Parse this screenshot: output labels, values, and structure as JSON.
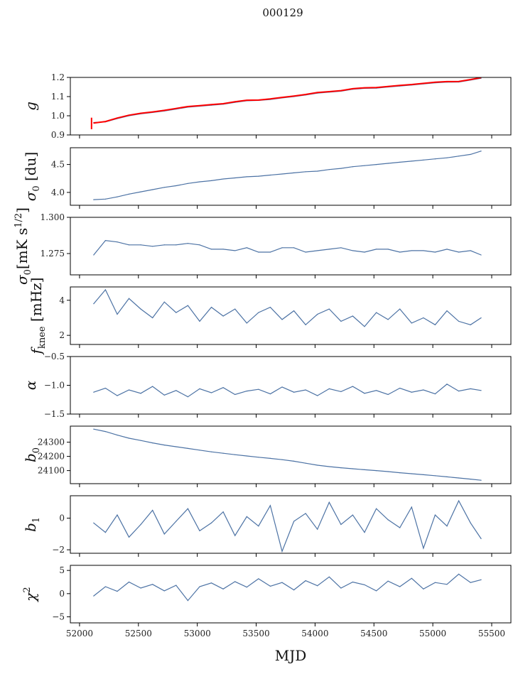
{
  "chart_data": {
    "type": "line",
    "title": "000129",
    "xlabel": "MJD",
    "xlim": [
      51922,
      55663
    ],
    "xticks": [
      52000,
      52500,
      53000,
      53500,
      54000,
      54500,
      55000,
      55500
    ],
    "x": [
      52120,
      52220,
      52320,
      52420,
      52520,
      52620,
      52720,
      52820,
      52920,
      53020,
      53120,
      53220,
      53320,
      53420,
      53520,
      53620,
      53720,
      53820,
      53920,
      54020,
      54120,
      54220,
      54320,
      54420,
      54520,
      54620,
      54720,
      54820,
      54920,
      55020,
      55120,
      55220,
      55320,
      55410
    ],
    "panels": [
      {
        "id": "g",
        "ylabel": {
          "sym": "g",
          "sub": "",
          "rest": "",
          "sup": "",
          "rest2": ""
        },
        "ylim": [
          0.9,
          1.2
        ],
        "yticks": [
          "0.9",
          "1.0",
          "1.1",
          "1.2"
        ],
        "series": [
          {
            "name": "g",
            "color": "#4c72a4",
            "values": [
              0.965,
              0.968,
              0.985,
              1.0,
              1.01,
              1.017,
              1.025,
              1.035,
              1.045,
              1.05,
              1.055,
              1.06,
              1.07,
              1.078,
              1.08,
              1.085,
              1.093,
              1.1,
              1.108,
              1.118,
              1.123,
              1.128,
              1.138,
              1.143,
              1.144,
              1.15,
              1.155,
              1.16,
              1.166,
              1.172,
              1.175,
              1.176,
              1.186,
              1.196
            ]
          },
          {
            "name": "g fit",
            "color": "#ff0000",
            "values": [
              0.962,
              0.97,
              0.988,
              1.003,
              1.013,
              1.02,
              1.028,
              1.038,
              1.048,
              1.053,
              1.058,
              1.063,
              1.073,
              1.081,
              1.082,
              1.088,
              1.096,
              1.103,
              1.111,
              1.121,
              1.126,
              1.131,
              1.141,
              1.146,
              1.147,
              1.153,
              1.158,
              1.163,
              1.169,
              1.175,
              1.178,
              1.179,
              1.189,
              1.199
            ]
          }
        ]
      },
      {
        "id": "sigma0_du",
        "ylabel": {
          "sym": "σ",
          "sub": "0",
          "rest": " [du]",
          "sup": "",
          "rest2": ""
        },
        "ylim": [
          3.77,
          4.8
        ],
        "yticks": [
          "4.0",
          "4.5"
        ],
        "series": [
          {
            "name": "sigma0 du",
            "color": "#4c72a4",
            "values": [
              3.87,
              3.88,
              3.92,
              3.97,
              4.01,
              4.05,
              4.09,
              4.12,
              4.16,
              4.19,
              4.21,
              4.24,
              4.26,
              4.28,
              4.29,
              4.31,
              4.33,
              4.35,
              4.37,
              4.38,
              4.41,
              4.43,
              4.46,
              4.48,
              4.5,
              4.52,
              4.54,
              4.56,
              4.58,
              4.6,
              4.62,
              4.65,
              4.68,
              4.74
            ]
          }
        ]
      },
      {
        "id": "sigma0_mk",
        "ylabel": {
          "sym": "σ",
          "sub": "0",
          "rest": "[mK s",
          "sup": "1/2",
          "rest2": "]"
        },
        "ylim": [
          1.2603,
          1.3
        ],
        "yticks": [
          "1.275",
          "1.300"
        ],
        "series": [
          {
            "name": "sigma0 mK",
            "color": "#4c72a4",
            "values": [
              1.274,
              1.284,
              1.283,
              1.281,
              1.281,
              1.28,
              1.281,
              1.281,
              1.282,
              1.281,
              1.278,
              1.278,
              1.277,
              1.279,
              1.276,
              1.276,
              1.279,
              1.279,
              1.276,
              1.277,
              1.278,
              1.279,
              1.277,
              1.276,
              1.278,
              1.278,
              1.276,
              1.277,
              1.277,
              1.276,
              1.278,
              1.276,
              1.277,
              1.274
            ]
          }
        ]
      },
      {
        "id": "fknee",
        "ylabel": {
          "sym": "f",
          "sub": "knee",
          "rest": " [mHz]",
          "sup": "",
          "rest2": ""
        },
        "ylim": [
          1.48,
          4.76
        ],
        "yticks": [
          "2",
          "4"
        ],
        "series": [
          {
            "name": "fknee",
            "color": "#4c72a4",
            "values": [
              3.8,
              4.6,
              3.2,
              4.1,
              3.5,
              3.0,
              3.9,
              3.3,
              3.7,
              2.8,
              3.6,
              3.1,
              3.5,
              2.7,
              3.3,
              3.6,
              2.9,
              3.4,
              2.6,
              3.2,
              3.5,
              2.8,
              3.1,
              2.5,
              3.3,
              2.9,
              3.5,
              2.7,
              3.0,
              2.6,
              3.4,
              2.8,
              2.6,
              3.0
            ]
          }
        ]
      },
      {
        "id": "alpha",
        "ylabel": {
          "sym": "α",
          "sub": "",
          "rest": "",
          "sup": "",
          "rest2": ""
        },
        "ylim": [
          -1.5,
          -0.5
        ],
        "yticks": [
          "−1.5",
          "−1.0",
          "−0.5"
        ],
        "series": [
          {
            "name": "alpha",
            "color": "#4c72a4",
            "values": [
              -1.12,
              -1.05,
              -1.18,
              -1.08,
              -1.14,
              -1.02,
              -1.17,
              -1.09,
              -1.2,
              -1.06,
              -1.13,
              -1.04,
              -1.16,
              -1.1,
              -1.07,
              -1.15,
              -1.03,
              -1.12,
              -1.08,
              -1.18,
              -1.06,
              -1.11,
              -1.02,
              -1.14,
              -1.09,
              -1.16,
              -1.05,
              -1.12,
              -1.08,
              -1.15,
              -0.98,
              -1.1,
              -1.06,
              -1.09
            ]
          }
        ]
      },
      {
        "id": "b0",
        "ylabel": {
          "sym": "b",
          "sub": "0",
          "rest": "",
          "sup": "",
          "rest2": ""
        },
        "ylim": [
          24008,
          24413
        ],
        "yticks": [
          "24100",
          "24200",
          "24300"
        ],
        "series": [
          {
            "name": "b0",
            "color": "#4c72a4",
            "values": [
              24392,
              24375,
              24350,
              24328,
              24312,
              24295,
              24280,
              24268,
              24256,
              24244,
              24232,
              24222,
              24212,
              24203,
              24194,
              24186,
              24177,
              24166,
              24152,
              24138,
              24128,
              24120,
              24113,
              24106,
              24100,
              24093,
              24085,
              24078,
              24071,
              24064,
              24056,
              24048,
              24040,
              24032
            ]
          }
        ]
      },
      {
        "id": "b1",
        "ylabel": {
          "sym": "b",
          "sub": "1",
          "rest": "",
          "sup": "",
          "rest2": ""
        },
        "ylim": [
          -2.22,
          1.42
        ],
        "yticks": [
          "−2",
          "0"
        ],
        "series": [
          {
            "name": "b1",
            "color": "#4c72a4",
            "values": [
              -0.3,
              -0.9,
              0.2,
              -1.2,
              -0.4,
              0.5,
              -1.0,
              -0.2,
              0.6,
              -0.8,
              -0.3,
              0.4,
              -1.1,
              0.1,
              -0.5,
              0.8,
              -2.1,
              -0.2,
              0.3,
              -0.7,
              1.0,
              -0.4,
              0.2,
              -0.9,
              0.6,
              -0.1,
              -0.6,
              0.7,
              -1.9,
              0.2,
              -0.5,
              1.1,
              -0.3,
              -1.3
            ]
          }
        ]
      },
      {
        "id": "chi2",
        "ylabel": {
          "sym": "χ",
          "sub": "",
          "rest": "",
          "sup": "2",
          "rest2": ""
        },
        "ylim": [
          -6.3,
          6.1
        ],
        "yticks": [
          "−5",
          "0",
          "5"
        ],
        "series": [
          {
            "name": "chi2",
            "color": "#4c72a4",
            "values": [
              -0.5,
              1.5,
              0.5,
              2.5,
              1.2,
              2.0,
              0.6,
              1.8,
              -1.5,
              1.5,
              2.3,
              1.0,
              2.6,
              1.4,
              3.2,
              1.6,
              2.4,
              0.8,
              2.8,
              1.7,
              3.6,
              1.2,
              2.5,
              1.9,
              0.6,
              2.7,
              1.5,
              3.3,
              1.0,
              2.4,
              2.0,
              4.2,
              2.4,
              3.0
            ]
          }
        ]
      }
    ]
  }
}
